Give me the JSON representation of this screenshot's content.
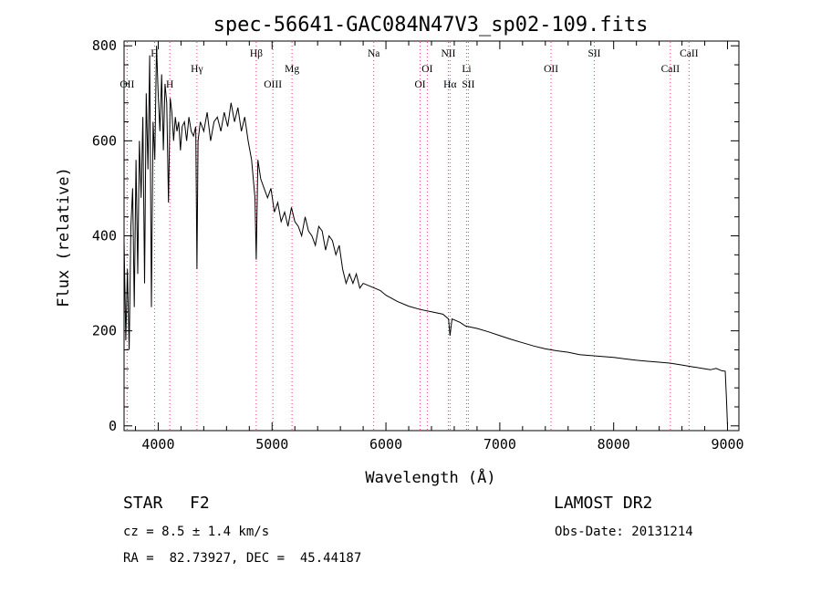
{
  "chart_data": {
    "type": "line",
    "title": "spec-56641-GAC084N47V3_sp02-109.fits",
    "xlabel": "Wavelength (Å)",
    "ylabel": "Flux (relative)",
    "xlim": [
      3700,
      9100
    ],
    "ylim": [
      -10,
      810
    ],
    "xticks": [
      4000,
      5000,
      6000,
      7000,
      8000,
      9000
    ],
    "yticks": [
      0,
      200,
      400,
      600,
      800
    ],
    "series": [
      {
        "name": "flux",
        "x": [
          3700,
          3715,
          3730,
          3745,
          3760,
          3775,
          3790,
          3805,
          3820,
          3835,
          3850,
          3865,
          3880,
          3895,
          3910,
          3925,
          3940,
          3955,
          3970,
          3985,
          4000,
          4015,
          4030,
          4045,
          4060,
          4075,
          4090,
          4105,
          4120,
          4135,
          4150,
          4165,
          4180,
          4195,
          4210,
          4230,
          4250,
          4270,
          4290,
          4310,
          4330,
          4340,
          4350,
          4370,
          4400,
          4430,
          4460,
          4490,
          4520,
          4550,
          4580,
          4610,
          4640,
          4670,
          4700,
          4730,
          4760,
          4790,
          4820,
          4850,
          4861,
          4875,
          4900,
          4930,
          4960,
          4990,
          5020,
          5050,
          5080,
          5110,
          5140,
          5170,
          5200,
          5230,
          5260,
          5290,
          5320,
          5350,
          5380,
          5410,
          5440,
          5470,
          5500,
          5530,
          5560,
          5590,
          5620,
          5650,
          5680,
          5710,
          5740,
          5770,
          5800,
          5850,
          5900,
          5950,
          6000,
          6100,
          6200,
          6300,
          6400,
          6500,
          6550,
          6563,
          6580,
          6650,
          6700,
          6800,
          6900,
          7000,
          7100,
          7200,
          7300,
          7400,
          7500,
          7600,
          7700,
          7800,
          7900,
          8000,
          8100,
          8200,
          8300,
          8400,
          8500,
          8600,
          8700,
          8800,
          8850,
          8900,
          8950,
          8980,
          8990,
          9000
        ],
        "y": [
          390,
          180,
          330,
          160,
          420,
          500,
          250,
          560,
          320,
          600,
          480,
          650,
          300,
          700,
          540,
          780,
          250,
          640,
          560,
          800,
          700,
          620,
          740,
          580,
          720,
          680,
          470,
          690,
          660,
          600,
          650,
          620,
          640,
          580,
          630,
          640,
          600,
          650,
          620,
          610,
          630,
          330,
          600,
          640,
          620,
          660,
          600,
          640,
          650,
          620,
          660,
          630,
          680,
          640,
          670,
          620,
          650,
          600,
          560,
          480,
          350,
          560,
          520,
          500,
          480,
          500,
          450,
          470,
          430,
          450,
          420,
          460,
          430,
          420,
          400,
          440,
          410,
          400,
          380,
          420,
          410,
          370,
          400,
          390,
          360,
          380,
          330,
          300,
          320,
          300,
          320,
          290,
          300,
          295,
          290,
          285,
          275,
          262,
          252,
          245,
          240,
          235,
          225,
          190,
          225,
          218,
          210,
          205,
          198,
          190,
          182,
          175,
          168,
          162,
          158,
          155,
          150,
          148,
          146,
          144,
          141,
          138,
          136,
          134,
          132,
          128,
          124,
          120,
          118,
          121,
          116,
          115,
          60,
          0
        ]
      }
    ],
    "lines": [
      {
        "name": "OII",
        "wave": 3727,
        "label_pos": "low"
      },
      {
        "name": "H",
        "wave": 3968,
        "label_pos": "high"
      },
      {
        "name": "H",
        "wave": 4102,
        "label_pos": "low"
      },
      {
        "name": "Hγ",
        "wave": 4340,
        "label_pos": "mid"
      },
      {
        "name": "Hβ",
        "wave": 4861,
        "label_pos": "high"
      },
      {
        "name": "OIII",
        "wave": 5007,
        "label_pos": "low"
      },
      {
        "name": "Mg",
        "wave": 5175,
        "label_pos": "mid"
      },
      {
        "name": "Na",
        "wave": 5893,
        "label_pos": "high"
      },
      {
        "name": "OI",
        "wave": 6300,
        "label_pos": "low"
      },
      {
        "name": "OI",
        "wave": 6363,
        "label_pos": "mid"
      },
      {
        "name": "NII",
        "wave": 6548,
        "label_pos": "high"
      },
      {
        "name": "Hα",
        "wave": 6563,
        "label_pos": "low"
      },
      {
        "name": "Li",
        "wave": 6708,
        "label_pos": "mid"
      },
      {
        "name": "SII",
        "wave": 6724,
        "label_pos": "low"
      },
      {
        "name": "OII",
        "wave": 7450,
        "label_pos": "mid"
      },
      {
        "name": "SII",
        "wave": 7830,
        "label_pos": "high"
      },
      {
        "name": "CaII",
        "wave": 8498,
        "label_pos": "mid"
      },
      {
        "name": "CaII",
        "wave": 8662,
        "label_pos": "high"
      }
    ],
    "line_color": "#e0405a"
  },
  "info": {
    "object_type": "STAR",
    "subclass": "F2",
    "survey": "LAMOST DR2",
    "cz_text": "cz = 8.5 ± 1.4 km/s",
    "obs_date_text": "Obs-Date: 20131214",
    "coords_text": "RA =  82.73927, DEC =  45.44187"
  }
}
